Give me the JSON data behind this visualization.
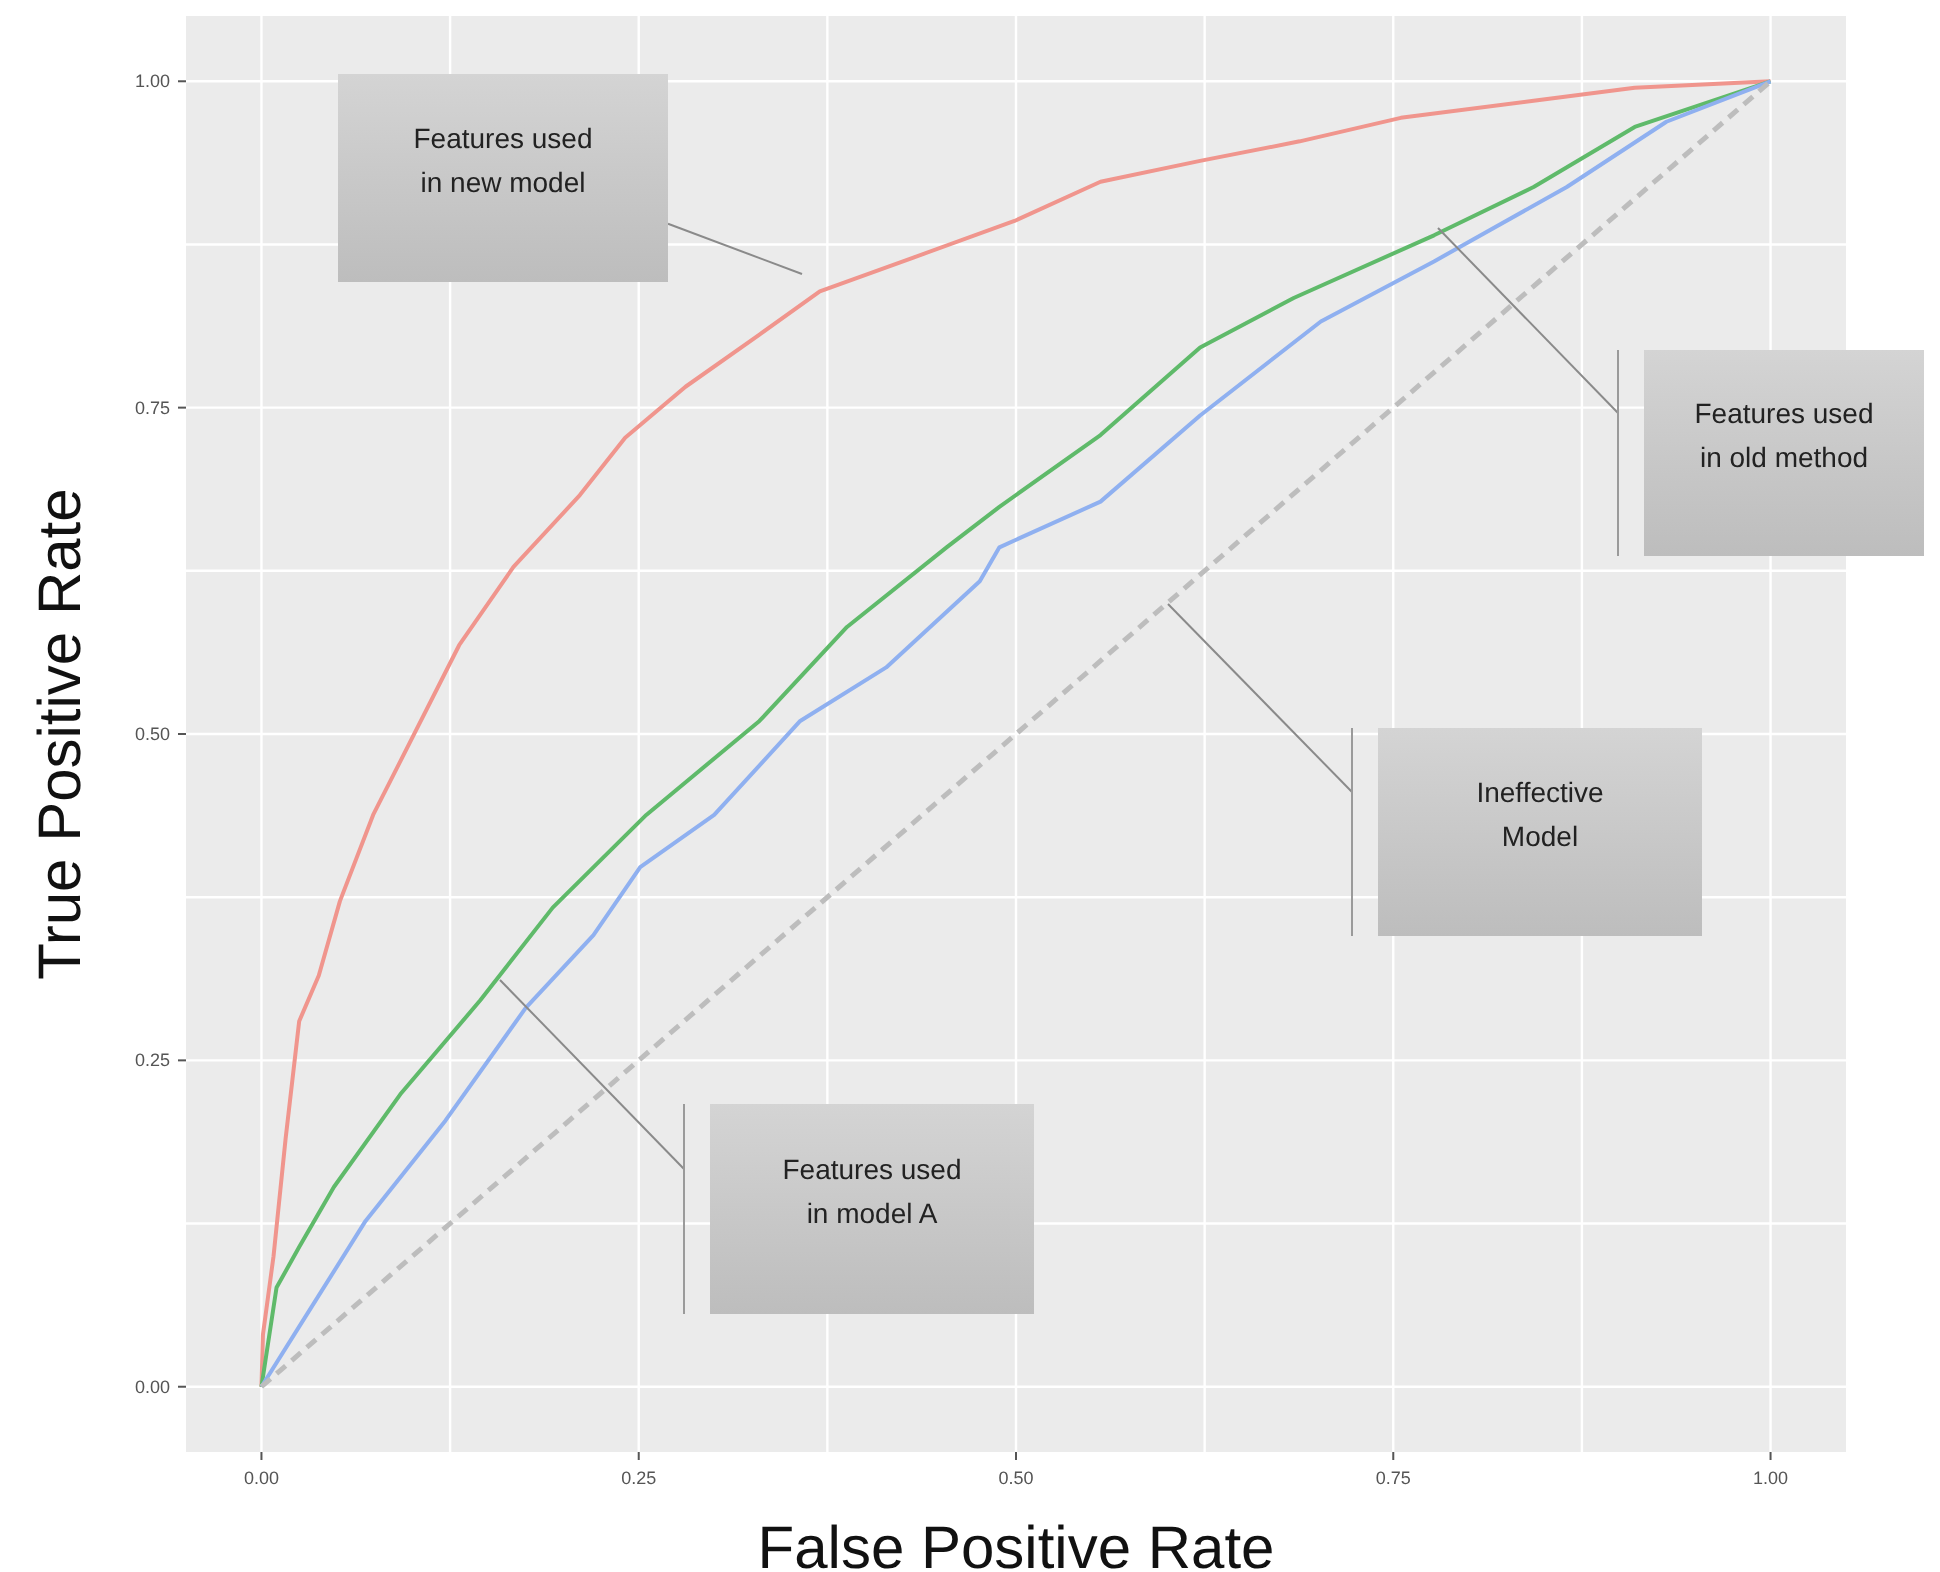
{
  "chart_data": {
    "type": "line",
    "xlabel": "False Positive Rate",
    "ylabel": "True Positive Rate",
    "xlim": [
      -0.05,
      1.05
    ],
    "ylim": [
      -0.05,
      1.05
    ],
    "xticks": [
      {
        "value": 0,
        "label": "0.00"
      },
      {
        "value": 0.125,
        "label": null
      },
      {
        "value": 0.25,
        "label": "0.25"
      },
      {
        "value": 0.375,
        "label": null
      },
      {
        "value": 0.5,
        "label": "0.50"
      },
      {
        "value": 0.625,
        "label": null
      },
      {
        "value": 0.75,
        "label": "0.75"
      },
      {
        "value": 0.875,
        "label": null
      },
      {
        "value": 1,
        "label": "1.00"
      }
    ],
    "yticks": [
      {
        "value": 0,
        "label": "0.00"
      },
      {
        "value": 0.125,
        "label": null
      },
      {
        "value": 0.25,
        "label": "0.25"
      },
      {
        "value": 0.375,
        "label": null
      },
      {
        "value": 0.5,
        "label": "0.50"
      },
      {
        "value": 0.625,
        "label": null
      },
      {
        "value": 0.75,
        "label": "0.75"
      },
      {
        "value": 0.875,
        "label": null
      },
      {
        "value": 1,
        "label": "1.00"
      }
    ],
    "grid": true,
    "marker": "none",
    "series": [
      {
        "color": "#f0958d",
        "line_style": "solid",
        "x": [
          0,
          0.001,
          0.008,
          0.016,
          0.025,
          0.038,
          0.052,
          0.074,
          0.092,
          0.131,
          0.167,
          0.211,
          0.241,
          0.281,
          0.33,
          0.37,
          0.432,
          0.499,
          0.556,
          0.622,
          0.688,
          0.755,
          0.843,
          0.91,
          1
        ],
        "values": [
          0,
          0.04,
          0.1,
          0.19,
          0.28,
          0.315,
          0.372,
          0.438,
          0.479,
          0.568,
          0.628,
          0.683,
          0.727,
          0.766,
          0.806,
          0.839,
          0.865,
          0.893,
          0.923,
          0.939,
          0.954,
          0.972,
          0.985,
          0.995,
          1
        ]
      },
      {
        "color": "#5fba6a",
        "line_style": "solid",
        "x": [
          0,
          0.01,
          0.025,
          0.048,
          0.092,
          0.145,
          0.193,
          0.255,
          0.33,
          0.388,
          0.454,
          0.489,
          0.556,
          0.622,
          0.684,
          0.777,
          0.843,
          0.91,
          1
        ],
        "values": [
          0,
          0.076,
          0.107,
          0.153,
          0.224,
          0.296,
          0.367,
          0.438,
          0.51,
          0.582,
          0.643,
          0.674,
          0.729,
          0.796,
          0.834,
          0.882,
          0.919,
          0.965,
          1
        ]
      },
      {
        "color": "#8fb0f0",
        "line_style": "solid",
        "x": [
          0,
          0.025,
          0.069,
          0.122,
          0.175,
          0.22,
          0.251,
          0.3,
          0.357,
          0.414,
          0.476,
          0.489,
          0.556,
          0.622,
          0.702,
          0.777,
          0.865,
          0.931,
          1
        ],
        "values": [
          0,
          0.046,
          0.127,
          0.204,
          0.29,
          0.346,
          0.398,
          0.438,
          0.51,
          0.551,
          0.617,
          0.643,
          0.678,
          0.744,
          0.816,
          0.862,
          0.919,
          0.969,
          1
        ]
      },
      {
        "color": "#bdbdbd",
        "line_style": "dashed",
        "x": [
          0,
          1
        ],
        "values": [
          0,
          1
        ]
      }
    ],
    "annotations": [
      "Features used\nin new model",
      "Features used\nin old method",
      "Ineffective\nModel",
      "Features used\nin model A"
    ]
  }
}
